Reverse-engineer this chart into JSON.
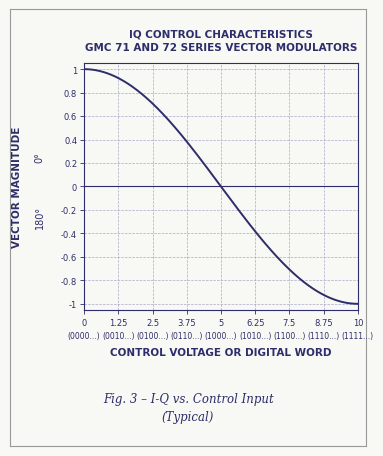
{
  "title_line1": "IQ CONTROL CHARACTERISTICS",
  "title_line2": "GMC 71 AND 72 SERIES VECTOR MODULATORS",
  "xlabel": "CONTROL VOLTAGE OR DIGITAL WORD",
  "ylabel_main": "VECTOR MAGNITUDE",
  "ylabel_0deg": "0°",
  "ylabel_180deg": "180°",
  "xlim": [
    0,
    10
  ],
  "ylim": [
    -1.0,
    1.0
  ],
  "yticks": [
    -1,
    -0.8,
    -0.6,
    -0.4,
    -0.2,
    0,
    0.2,
    0.4,
    0.6,
    0.8,
    1
  ],
  "ytick_labels": [
    "-1",
    "-0.8",
    "-0.6",
    "-0.4",
    "-0.2",
    "0",
    "0.2",
    "0.4",
    "0.6",
    "0.8",
    "1"
  ],
  "xticks": [
    0,
    1.25,
    2.5,
    3.75,
    5,
    6.25,
    7.5,
    8.75,
    10
  ],
  "xtick_labels_top": [
    "0",
    "1.25",
    "2.5",
    "3.75",
    "5",
    "6.25",
    "7.5",
    "8.75",
    "10"
  ],
  "xtick_labels_bot": [
    "(0000...)",
    "(0010...)",
    "(0100...)",
    "(0110...)",
    "(1000...)",
    "(1010...)",
    "(1100...)",
    "(1110...)",
    "(1111...)"
  ],
  "caption_line1": "Fig. 3 – I-Q vs. Control Input",
  "caption_line2": "(Typical)",
  "curve_color": "#2d2d6b",
  "grid_color": "#aaaacc",
  "axis_color": "#2d2d6b",
  "text_color": "#2d2d6b",
  "background": "#f8f8f4",
  "border_color": "#999999",
  "title_fontsize": 7.5,
  "axis_label_fontsize": 7.5,
  "tick_fontsize": 6.0,
  "caption_fontsize": 8.5
}
